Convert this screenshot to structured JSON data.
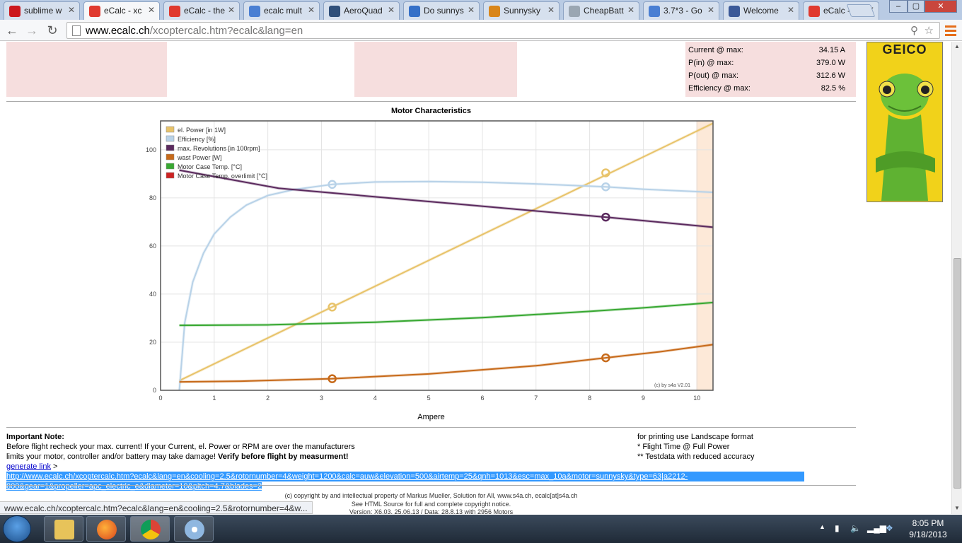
{
  "tabs": [
    {
      "title": "sublime w",
      "icon": "youtube-icon",
      "color": "#cc181e",
      "active": false
    },
    {
      "title": "eCalc - xc",
      "icon": "ecalc-icon",
      "color": "#e03a2f",
      "active": true
    },
    {
      "title": "eCalc - the",
      "icon": "ecalc-icon",
      "color": "#e03a2f",
      "active": false
    },
    {
      "title": "ecalc mult",
      "icon": "google-icon",
      "color": "#4a7fd3",
      "active": false
    },
    {
      "title": "AeroQuad",
      "icon": "aeroquad-icon",
      "color": "#2f4f7a",
      "active": false
    },
    {
      "title": "Do sunnys",
      "icon": "diggit-icon",
      "color": "#3570c8",
      "active": false
    },
    {
      "title": "Sunnysky",
      "icon": "cart-icon",
      "color": "#d9861b",
      "active": false
    },
    {
      "title": "CheapBatt",
      "icon": "document-icon",
      "color": "#9aa6b2",
      "active": false
    },
    {
      "title": "3.7*3 - Go",
      "icon": "google-icon",
      "color": "#4a7fd3",
      "active": false
    },
    {
      "title": "Welcome",
      "icon": "facebook-icon",
      "color": "#3b5998",
      "active": false
    },
    {
      "title": "eCalc - xc",
      "icon": "ecalc-icon",
      "color": "#e03a2f",
      "active": false
    }
  ],
  "url": {
    "host": "www.ecalc.ch",
    "path": "/xcoptercalc.htm?ecalc&lang=en"
  },
  "results": [
    {
      "label": "Current @ max:",
      "value": "34.15 A"
    },
    {
      "label": "P(in) @ max:",
      "value": "379.0 W"
    },
    {
      "label": "P(out) @ max:",
      "value": "312.6 W"
    },
    {
      "label": "Efficiency @ max:",
      "value": "82.5 %"
    }
  ],
  "ad": {
    "brand": "GEICO",
    "color": "#f1d21a"
  },
  "chart_data": {
    "type": "line",
    "title": "Motor Characteristics",
    "xlabel": "Ampere",
    "ylabel": "",
    "xlim": [
      0,
      10.3
    ],
    "ylim": [
      0,
      112
    ],
    "xticks": [
      0,
      1,
      2,
      3,
      4,
      5,
      6,
      7,
      8,
      9,
      10
    ],
    "yticks": [
      0,
      20,
      40,
      60,
      80,
      100
    ],
    "legend_position": "top-left",
    "credit": "(c) by s4a    V2.01",
    "limit_band": {
      "from": 10.0,
      "to": 10.3,
      "color": "#fde9d8"
    },
    "series": [
      {
        "name": "el. Power [in 1W]",
        "color": "#e8c36a",
        "x": [
          0.35,
          10.3
        ],
        "y": [
          4,
          111
        ],
        "markers": [
          [
            3.2,
            34.6
          ],
          [
            8.3,
            90.4
          ]
        ]
      },
      {
        "name": "Efficiency [%]",
        "color": "#b8d2e8",
        "x": [
          0.35,
          0.45,
          0.6,
          0.8,
          1.0,
          1.3,
          1.6,
          2.0,
          2.5,
          3.2,
          4.0,
          5.0,
          6.0,
          7.0,
          8.3,
          9.0,
          10.3
        ],
        "y": [
          0,
          28,
          45,
          57,
          65,
          72,
          77,
          81,
          83.5,
          85.6,
          86.6,
          86.8,
          86.5,
          85.8,
          84.6,
          83.6,
          82.3
        ],
        "markers": [
          [
            3.2,
            85.6
          ],
          [
            8.3,
            84.6
          ]
        ]
      },
      {
        "name": "max. Revolutions [in 100rpm]",
        "color": "#5b2a5e",
        "x": [
          0.35,
          2.2,
          8.3,
          10.3
        ],
        "y": [
          91.5,
          84,
          72,
          67.8
        ],
        "markers": [
          [
            8.3,
            72
          ]
        ]
      },
      {
        "name": "wast Power [W]",
        "color": "#c76a1a",
        "x": [
          0.35,
          1.5,
          3.2,
          5.0,
          7.0,
          8.3,
          9.3,
          10.3
        ],
        "y": [
          3.5,
          3.8,
          4.8,
          6.8,
          10.2,
          13.5,
          16,
          19
        ],
        "markers": [
          [
            3.2,
            4.8
          ],
          [
            8.3,
            13.5
          ]
        ]
      },
      {
        "name": "Motor Case Temp. [°C]",
        "color": "#38a832",
        "x": [
          0.35,
          2.0,
          4.0,
          6.0,
          8.0,
          9.0,
          10.3
        ],
        "y": [
          27,
          27.2,
          28.3,
          30.2,
          32.8,
          34.3,
          36.5
        ],
        "markers": []
      },
      {
        "name": "Motor Case Temp. overlimit [°C]",
        "color": "#cc2222",
        "x": [],
        "y": [],
        "markers": []
      }
    ]
  },
  "notes": {
    "heading": "Important Note:",
    "line1": "Before flight recheck your max. current! If your Current, el. Power or RPM are over the manufacturers",
    "line2": "limits your motor, controller and/or battery may take damage!",
    "line2_bold": "Verify before flight by measurment!",
    "right1": "for printing use Landscape format",
    "right2": "* Flight Time @ Full Power",
    "right3": "** Testdata with reduced accuracy"
  },
  "generate": {
    "label": "generate link",
    "sep": " > ",
    "link_line1": "http://www.ecalc.ch/xcoptercalc.htm?ecalc&lang=en&cooling=2.5&rotornumber=4&weight=1200&calc=auw&elevation=500&airtemp=25&qnh=1013&esc=max_10a&motor=sunnysky&type=63|a2212-",
    "link_line2": "800&gear=1&propeller=apc_electric_e&diameter=10&pitch=4.7&blades=2"
  },
  "footer": {
    "copyright": "(c) copyright by and intellectual property of Markus Mueller, Solution for All, www.s4a.ch, ecalc[at]s4a.ch",
    "source": "See HTML Source for full and complete copyright notice.",
    "version": "Version: X6.03, 25.06.13 / Data: 28.8.13 with 2956 Motors"
  },
  "status_url": "www.ecalc.ch/xcoptercalc.htm?ecalc&lang=en&cooling=2.5&rotornumber=4&w...",
  "clock": {
    "time": "8:05 PM",
    "date": "9/18/2013"
  }
}
